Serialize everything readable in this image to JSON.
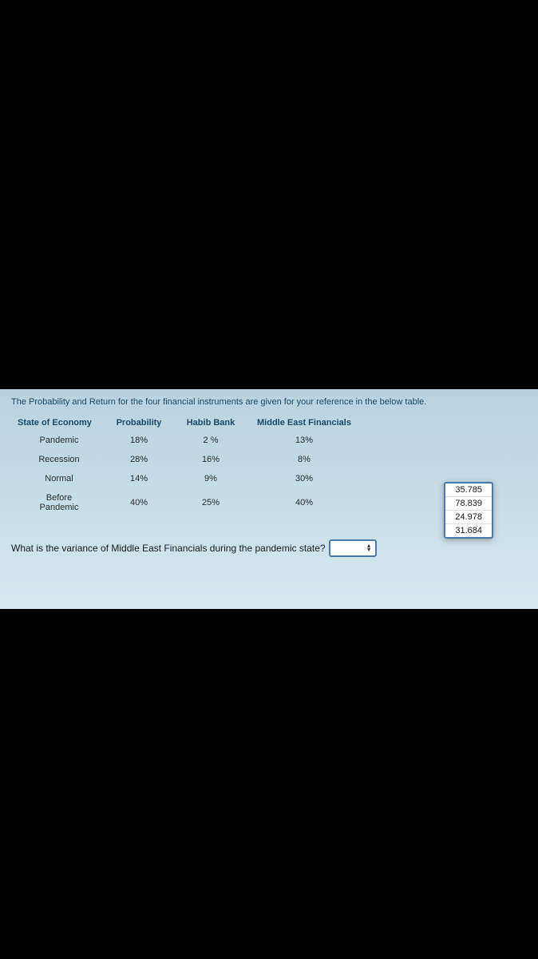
{
  "intro": "The Probability and Return for the four financial instruments are given for your reference in the below table.",
  "table": {
    "headers": {
      "state": "State of Economy",
      "probability": "Probability",
      "bank": "Habib Bank",
      "mef": "Middle East Financials"
    },
    "rows": [
      {
        "state": "Pandemic",
        "probability": "18%",
        "bank": "2 %",
        "mef": "13%"
      },
      {
        "state": "Recession",
        "probability": "28%",
        "bank": "16%",
        "mef": "8%"
      },
      {
        "state": "Normal",
        "probability": "14%",
        "bank": "9%",
        "mef": "30%"
      },
      {
        "state": "Before Pandemic",
        "probability": "40%",
        "bank": "25%",
        "mef": "40%"
      }
    ]
  },
  "question": "What is the variance of Middle East Financials during the pandemic state?",
  "options": [
    "35.785",
    "78.839",
    "24.978",
    "31.684"
  ],
  "colors": {
    "background": "#000000",
    "content_bg_top": "#b8d4e0",
    "content_bg_bottom": "#d8e8ee",
    "header_text": "#184868",
    "cell_text": "#2a2a2a",
    "select_border": "#4a7aaa"
  }
}
